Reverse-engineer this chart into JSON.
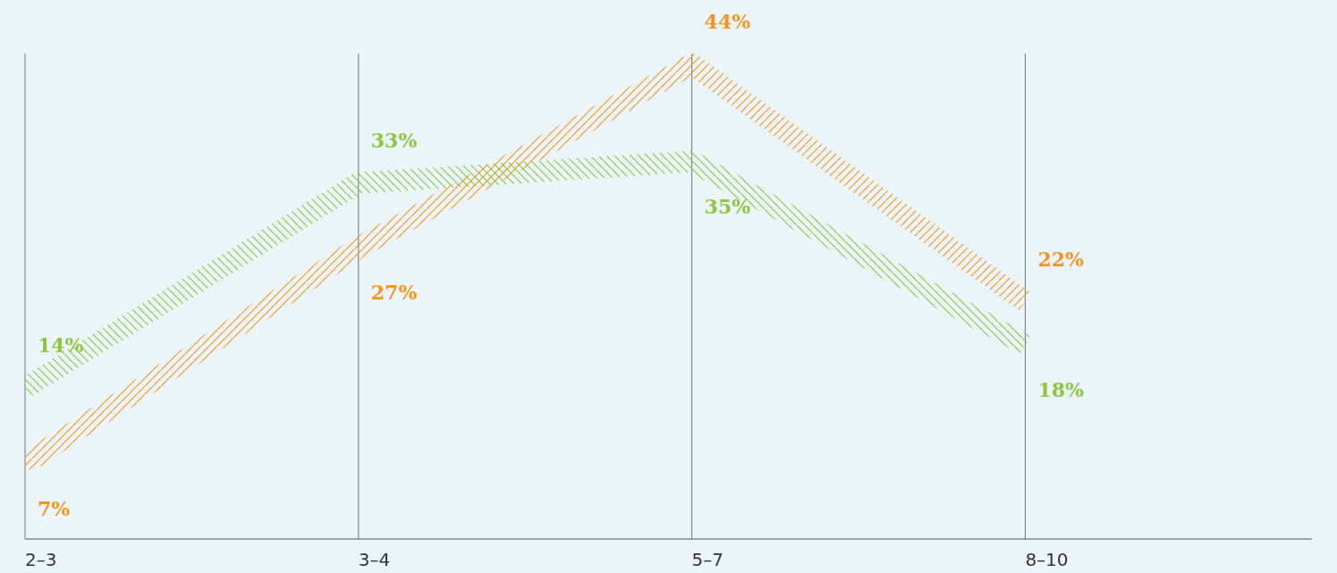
{
  "chart_data": {
    "type": "line",
    "categories": [
      "2–3",
      "3–4",
      "5–7",
      "8–10"
    ],
    "ylim": [
      0,
      45
    ],
    "grid": "x",
    "tick_labels": "x",
    "series": [
      {
        "color": "#f7941d",
        "values": [
          7,
          27,
          44,
          22
        ],
        "value_labels": [
          "7%",
          "27%",
          "44%",
          "22%"
        ]
      },
      {
        "color": "#8dc63f",
        "values": [
          14,
          33,
          35,
          18
        ],
        "value_labels": [
          "14%",
          "33%",
          "35%",
          "18%"
        ]
      }
    ]
  }
}
